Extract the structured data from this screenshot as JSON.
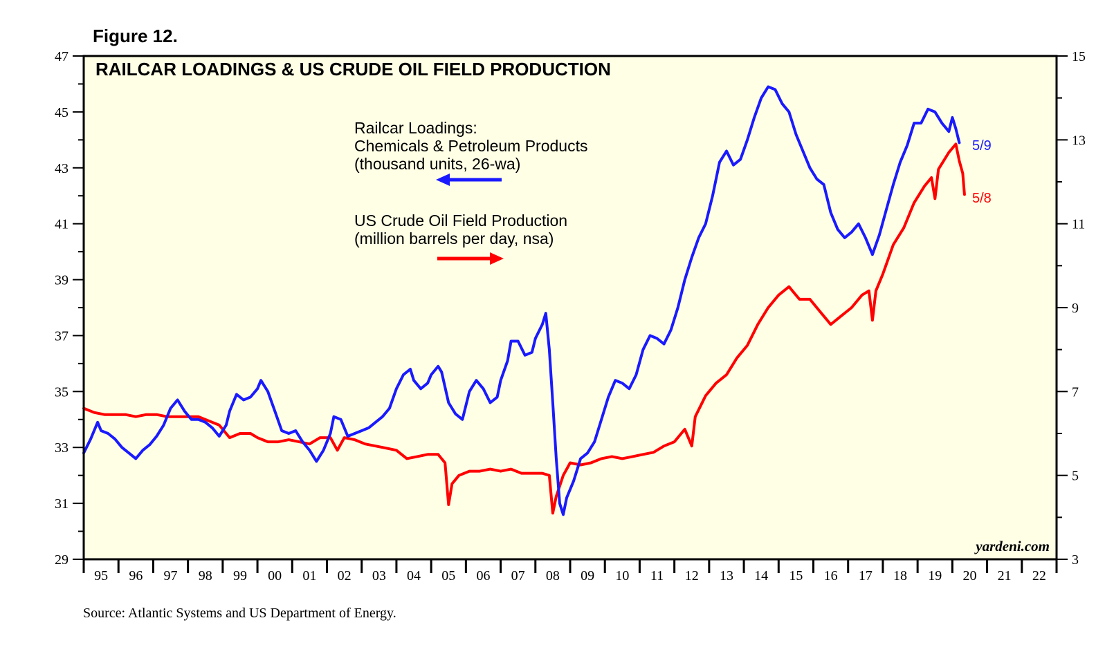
{
  "figure_label": "Figure 12.",
  "source": "Source: Atlantic Systems and US Department of Energy.",
  "watermark": "yardeni.com",
  "colors": {
    "blue": "#1a1aff",
    "red": "#ff0000",
    "plot_bg": "#ffffe6",
    "axis": "#000000"
  },
  "chart_data": {
    "type": "line",
    "title": "RAILCAR LOADINGS & US CRUDE OIL FIELD PRODUCTION",
    "x_range": [
      1995,
      2023
    ],
    "x_tick_labels": [
      "95",
      "96",
      "97",
      "98",
      "99",
      "00",
      "01",
      "02",
      "03",
      "04",
      "05",
      "06",
      "07",
      "08",
      "09",
      "10",
      "11",
      "12",
      "13",
      "14",
      "15",
      "16",
      "17",
      "18",
      "19",
      "20",
      "21",
      "22"
    ],
    "left_axis": {
      "range": [
        29,
        47
      ],
      "tick_labels": [
        "47",
        "45",
        "43",
        "41",
        "39",
        "37",
        "35",
        "33",
        "31",
        "29"
      ],
      "ticks": [
        47,
        45,
        43,
        41,
        39,
        37,
        35,
        33,
        31,
        29
      ]
    },
    "right_axis": {
      "range": [
        3,
        15
      ],
      "tick_labels": [
        "15",
        "13",
        "11",
        "9",
        "7",
        "5",
        "3"
      ],
      "ticks": [
        15,
        13,
        11,
        9,
        7,
        5,
        3
      ]
    },
    "series": [
      {
        "name": "Railcar Loadings",
        "axis": "left",
        "color": "#1a1aff",
        "end_label": "5/9",
        "legend_lines": [
          "Railcar Loadings:",
          "Chemicals & Petroleum Products",
          "(thousand units, 26-wa)"
        ],
        "points": [
          [
            1995.0,
            32.8
          ],
          [
            1995.2,
            33.3
          ],
          [
            1995.4,
            33.9
          ],
          [
            1995.5,
            33.6
          ],
          [
            1995.7,
            33.5
          ],
          [
            1995.9,
            33.3
          ],
          [
            1996.1,
            33.0
          ],
          [
            1996.3,
            32.8
          ],
          [
            1996.5,
            32.6
          ],
          [
            1996.7,
            32.9
          ],
          [
            1996.9,
            33.1
          ],
          [
            1997.1,
            33.4
          ],
          [
            1997.3,
            33.8
          ],
          [
            1997.5,
            34.4
          ],
          [
            1997.7,
            34.7
          ],
          [
            1997.9,
            34.3
          ],
          [
            1998.1,
            34.0
          ],
          [
            1998.3,
            34.0
          ],
          [
            1998.5,
            33.9
          ],
          [
            1998.7,
            33.7
          ],
          [
            1998.9,
            33.4
          ],
          [
            1999.1,
            33.8
          ],
          [
            1999.2,
            34.3
          ],
          [
            1999.4,
            34.9
          ],
          [
            1999.6,
            34.7
          ],
          [
            1999.8,
            34.8
          ],
          [
            2000.0,
            35.1
          ],
          [
            2000.1,
            35.4
          ],
          [
            2000.3,
            35.0
          ],
          [
            2000.5,
            34.3
          ],
          [
            2000.7,
            33.6
          ],
          [
            2000.9,
            33.5
          ],
          [
            2001.1,
            33.6
          ],
          [
            2001.3,
            33.2
          ],
          [
            2001.5,
            32.9
          ],
          [
            2001.7,
            32.5
          ],
          [
            2001.9,
            32.9
          ],
          [
            2002.1,
            33.5
          ],
          [
            2002.2,
            34.1
          ],
          [
            2002.4,
            34.0
          ],
          [
            2002.6,
            33.4
          ],
          [
            2002.8,
            33.5
          ],
          [
            2003.0,
            33.6
          ],
          [
            2003.2,
            33.7
          ],
          [
            2003.4,
            33.9
          ],
          [
            2003.6,
            34.1
          ],
          [
            2003.8,
            34.4
          ],
          [
            2004.0,
            35.1
          ],
          [
            2004.2,
            35.6
          ],
          [
            2004.4,
            35.8
          ],
          [
            2004.5,
            35.4
          ],
          [
            2004.7,
            35.1
          ],
          [
            2004.9,
            35.3
          ],
          [
            2005.0,
            35.6
          ],
          [
            2005.2,
            35.9
          ],
          [
            2005.3,
            35.7
          ],
          [
            2005.5,
            34.6
          ],
          [
            2005.7,
            34.2
          ],
          [
            2005.9,
            34.0
          ],
          [
            2006.1,
            35.0
          ],
          [
            2006.3,
            35.4
          ],
          [
            2006.5,
            35.1
          ],
          [
            2006.7,
            34.6
          ],
          [
            2006.9,
            34.8
          ],
          [
            2007.0,
            35.4
          ],
          [
            2007.2,
            36.1
          ],
          [
            2007.3,
            36.8
          ],
          [
            2007.5,
            36.8
          ],
          [
            2007.7,
            36.3
          ],
          [
            2007.9,
            36.4
          ],
          [
            2008.0,
            36.9
          ],
          [
            2008.2,
            37.4
          ],
          [
            2008.3,
            37.8
          ],
          [
            2008.4,
            36.5
          ],
          [
            2008.5,
            34.6
          ],
          [
            2008.6,
            32.6
          ],
          [
            2008.7,
            31.0
          ],
          [
            2008.8,
            30.6
          ],
          [
            2008.9,
            31.2
          ],
          [
            2009.1,
            31.8
          ],
          [
            2009.3,
            32.6
          ],
          [
            2009.5,
            32.8
          ],
          [
            2009.7,
            33.2
          ],
          [
            2009.9,
            34.0
          ],
          [
            2010.1,
            34.8
          ],
          [
            2010.3,
            35.4
          ],
          [
            2010.5,
            35.3
          ],
          [
            2010.7,
            35.1
          ],
          [
            2010.9,
            35.6
          ],
          [
            2011.1,
            36.5
          ],
          [
            2011.3,
            37.0
          ],
          [
            2011.5,
            36.9
          ],
          [
            2011.7,
            36.7
          ],
          [
            2011.9,
            37.2
          ],
          [
            2012.1,
            38.0
          ],
          [
            2012.3,
            39.0
          ],
          [
            2012.5,
            39.8
          ],
          [
            2012.7,
            40.5
          ],
          [
            2012.9,
            41.0
          ],
          [
            2013.1,
            42.0
          ],
          [
            2013.3,
            43.2
          ],
          [
            2013.5,
            43.6
          ],
          [
            2013.7,
            43.1
          ],
          [
            2013.9,
            43.3
          ],
          [
            2014.1,
            44.0
          ],
          [
            2014.3,
            44.8
          ],
          [
            2014.5,
            45.5
          ],
          [
            2014.7,
            45.9
          ],
          [
            2014.9,
            45.8
          ],
          [
            2015.1,
            45.3
          ],
          [
            2015.3,
            45.0
          ],
          [
            2015.5,
            44.2
          ],
          [
            2015.7,
            43.6
          ],
          [
            2015.9,
            43.0
          ],
          [
            2016.1,
            42.6
          ],
          [
            2016.3,
            42.4
          ],
          [
            2016.5,
            41.4
          ],
          [
            2016.7,
            40.8
          ],
          [
            2016.9,
            40.5
          ],
          [
            2017.1,
            40.7
          ],
          [
            2017.3,
            41.0
          ],
          [
            2017.5,
            40.5
          ],
          [
            2017.7,
            39.9
          ],
          [
            2017.9,
            40.6
          ],
          [
            2018.1,
            41.5
          ],
          [
            2018.3,
            42.4
          ],
          [
            2018.5,
            43.2
          ],
          [
            2018.7,
            43.8
          ],
          [
            2018.9,
            44.6
          ],
          [
            2019.1,
            44.6
          ],
          [
            2019.3,
            45.1
          ],
          [
            2019.5,
            45.0
          ],
          [
            2019.7,
            44.6
          ],
          [
            2019.9,
            44.3
          ],
          [
            2020.0,
            44.8
          ],
          [
            2020.1,
            44.4
          ],
          [
            2020.2,
            43.9
          ]
        ]
      },
      {
        "name": "US Crude Oil Field Production",
        "axis": "right",
        "color": "#ff0000",
        "end_label": "5/8",
        "legend_lines": [
          "US Crude Oil Field Production",
          "(million barrels per day, nsa)"
        ],
        "points": [
          [
            1995.0,
            6.6
          ],
          [
            1995.3,
            6.5
          ],
          [
            1995.6,
            6.45
          ],
          [
            1995.9,
            6.45
          ],
          [
            1996.2,
            6.45
          ],
          [
            1996.5,
            6.4
          ],
          [
            1996.8,
            6.45
          ],
          [
            1997.1,
            6.45
          ],
          [
            1997.4,
            6.4
          ],
          [
            1997.7,
            6.4
          ],
          [
            1998.0,
            6.4
          ],
          [
            1998.3,
            6.4
          ],
          [
            1998.6,
            6.3
          ],
          [
            1998.9,
            6.2
          ],
          [
            1999.2,
            5.9
          ],
          [
            1999.5,
            6.0
          ],
          [
            1999.8,
            6.0
          ],
          [
            2000.0,
            5.9
          ],
          [
            2000.3,
            5.8
          ],
          [
            2000.6,
            5.8
          ],
          [
            2000.9,
            5.85
          ],
          [
            2001.2,
            5.8
          ],
          [
            2001.5,
            5.75
          ],
          [
            2001.8,
            5.9
          ],
          [
            2002.1,
            5.9
          ],
          [
            2002.3,
            5.6
          ],
          [
            2002.5,
            5.9
          ],
          [
            2002.8,
            5.85
          ],
          [
            2003.1,
            5.75
          ],
          [
            2003.4,
            5.7
          ],
          [
            2003.7,
            5.65
          ],
          [
            2004.0,
            5.6
          ],
          [
            2004.3,
            5.4
          ],
          [
            2004.6,
            5.45
          ],
          [
            2004.9,
            5.5
          ],
          [
            2005.2,
            5.5
          ],
          [
            2005.4,
            5.3
          ],
          [
            2005.5,
            4.3
          ],
          [
            2005.6,
            4.8
          ],
          [
            2005.8,
            5.0
          ],
          [
            2006.1,
            5.1
          ],
          [
            2006.4,
            5.1
          ],
          [
            2006.7,
            5.15
          ],
          [
            2007.0,
            5.1
          ],
          [
            2007.3,
            5.15
          ],
          [
            2007.6,
            5.05
          ],
          [
            2007.9,
            5.05
          ],
          [
            2008.2,
            5.05
          ],
          [
            2008.4,
            5.0
          ],
          [
            2008.5,
            4.1
          ],
          [
            2008.6,
            4.5
          ],
          [
            2008.8,
            5.0
          ],
          [
            2009.0,
            5.3
          ],
          [
            2009.3,
            5.25
          ],
          [
            2009.6,
            5.3
          ],
          [
            2009.9,
            5.4
          ],
          [
            2010.2,
            5.45
          ],
          [
            2010.5,
            5.4
          ],
          [
            2010.8,
            5.45
          ],
          [
            2011.1,
            5.5
          ],
          [
            2011.4,
            5.55
          ],
          [
            2011.7,
            5.7
          ],
          [
            2012.0,
            5.8
          ],
          [
            2012.3,
            6.1
          ],
          [
            2012.5,
            5.7
          ],
          [
            2012.6,
            6.4
          ],
          [
            2012.9,
            6.9
          ],
          [
            2013.2,
            7.2
          ],
          [
            2013.5,
            7.4
          ],
          [
            2013.8,
            7.8
          ],
          [
            2014.1,
            8.1
          ],
          [
            2014.4,
            8.6
          ],
          [
            2014.7,
            9.0
          ],
          [
            2015.0,
            9.3
          ],
          [
            2015.3,
            9.5
          ],
          [
            2015.6,
            9.2
          ],
          [
            2015.9,
            9.2
          ],
          [
            2016.2,
            8.9
          ],
          [
            2016.5,
            8.6
          ],
          [
            2016.8,
            8.8
          ],
          [
            2017.1,
            9.0
          ],
          [
            2017.4,
            9.3
          ],
          [
            2017.6,
            9.4
          ],
          [
            2017.7,
            8.7
          ],
          [
            2017.8,
            9.4
          ],
          [
            2018.0,
            9.8
          ],
          [
            2018.3,
            10.5
          ],
          [
            2018.6,
            10.9
          ],
          [
            2018.9,
            11.5
          ],
          [
            2019.2,
            11.9
          ],
          [
            2019.4,
            12.1
          ],
          [
            2019.5,
            11.6
          ],
          [
            2019.6,
            12.3
          ],
          [
            2019.9,
            12.7
          ],
          [
            2020.1,
            12.9
          ],
          [
            2020.2,
            12.5
          ],
          [
            2020.3,
            12.2
          ],
          [
            2020.35,
            11.7
          ]
        ]
      }
    ]
  }
}
